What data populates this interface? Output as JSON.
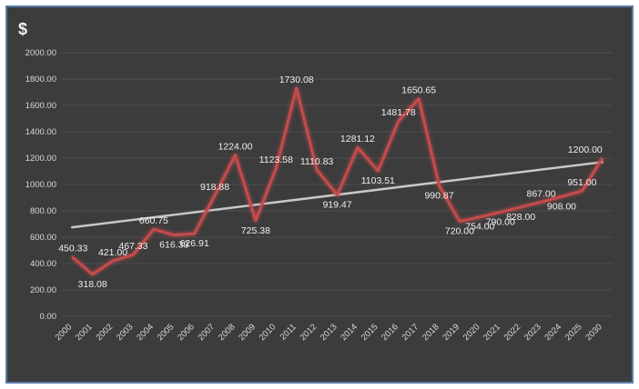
{
  "header": {
    "currency_symbol": "$"
  },
  "colors": {
    "background": "#3c3c3c",
    "border": "#5a7ea8",
    "series_line": "#c44b4b",
    "trendline": "#c8c8c8",
    "text": "#d9d9d9"
  },
  "chart_data": {
    "type": "line",
    "title": "$",
    "xlabel": "",
    "ylabel": "",
    "ylim": [
      0,
      2000
    ],
    "y_ticks": [
      "0.00",
      "200.00",
      "400.00",
      "600.00",
      "800.00",
      "1000.00",
      "1200.00",
      "1400.00",
      "1600.00",
      "1800.00",
      "2000.00"
    ],
    "categories": [
      "2000",
      "2001",
      "2002",
      "2003",
      "2004",
      "2005",
      "2006",
      "2007",
      "2008",
      "2009",
      "2010",
      "2011",
      "2012",
      "2013",
      "2014",
      "2015",
      "2016",
      "2017",
      "2018",
      "2019",
      "2020",
      "2021",
      "2022",
      "2023",
      "2024",
      "2025",
      "2030"
    ],
    "series": [
      {
        "values": [
          450.33,
          318.08,
          421.0,
          467.33,
          660.75,
          616.33,
          626.91,
          918.88,
          1224.0,
          725.38,
          1123.58,
          1730.08,
          1110.83,
          919.47,
          1281.12,
          1103.51,
          1481.78,
          1650.65,
          990.87,
          720.0,
          754.0,
          790.0,
          828.0,
          867.0,
          908.0,
          951.0,
          1200.0
        ],
        "labels": [
          "450.33",
          "318.08",
          "421.00",
          "467.33",
          "660.75",
          "616.33",
          "626.91",
          "918.88",
          "1224.00",
          "725.38",
          "1123.58",
          "1730.08",
          "1110.83",
          "919.47",
          "1281.12",
          "1103.51",
          "1481.78",
          "1650.65",
          "990.87",
          "720.00",
          "754.00",
          "790.00",
          "828.00",
          "867.00",
          "908.00",
          "951.00",
          "1200.00"
        ]
      }
    ],
    "trendline": {
      "type": "linear",
      "start": 675,
      "end": 1170
    },
    "grid": true,
    "legend": "none"
  }
}
